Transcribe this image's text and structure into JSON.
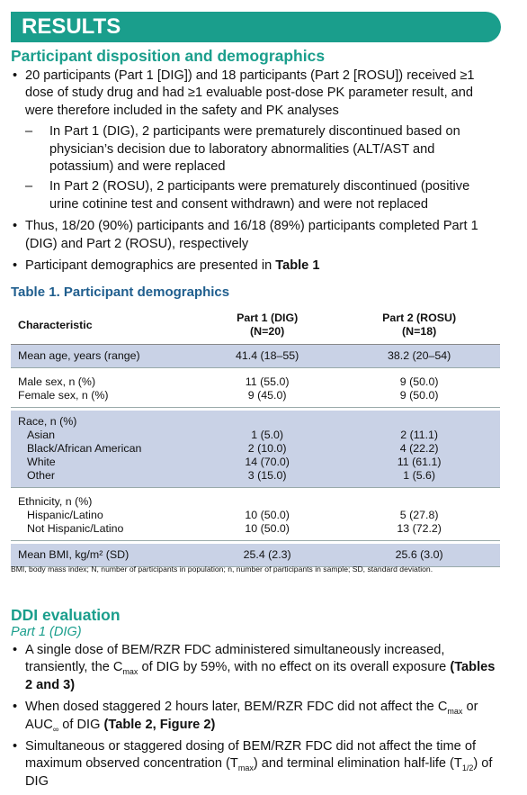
{
  "header": {
    "title": "RESULTS"
  },
  "section1": {
    "heading": "Participant disposition and demographics",
    "bullets": [
      {
        "text": "20 participants (Part 1 [DIG]) and 18 participants (Part 2 [ROSU]) received ≥1 dose of study drug and had ≥1 evaluable post-dose PK parameter result, and were therefore included in the safety and PK analyses",
        "subbullets": [
          "In Part 1 (DIG), 2 participants were prematurely discontinued based on physician’s decision due to laboratory abnormalities (ALT/AST and potassium) and were replaced",
          "In Part 2 (ROSU), 2 participants were prematurely discontinued (positive urine cotinine test and consent withdrawn) and were not replaced"
        ]
      },
      {
        "text": "Thus, 18/20 (90%) participants and 16/18 (89%) participants completed Part 1 (DIG) and Part 2 (ROSU), respectively"
      },
      {
        "parts": [
          "Participant demographics are presented in ",
          "Table 1"
        ]
      }
    ]
  },
  "table": {
    "title": "Table 1. Participant demographics",
    "columns": [
      {
        "name": "Characteristic"
      },
      {
        "name": "Part 1 (DIG)",
        "n": "(N=20)"
      },
      {
        "name": "Part 2 (ROSU)",
        "n": "(N=18)"
      }
    ],
    "groups": [
      {
        "rows": [
          {
            "label": "Mean age, years (range)",
            "values": [
              "41.4 (18–55)",
              "38.2 (20–54)"
            ]
          }
        ]
      },
      {
        "rows": [
          {
            "label": "Male sex, n (%)",
            "values": [
              "11 (55.0)",
              "9 (50.0)"
            ]
          },
          {
            "label": "Female sex, n (%)",
            "values": [
              "9 (45.0)",
              "9 (50.0)"
            ]
          }
        ]
      },
      {
        "heading": "Race, n (%)",
        "rows": [
          {
            "label": "Asian",
            "values": [
              "1 (5.0)",
              "2 (11.1)"
            ]
          },
          {
            "label": "Black/African American",
            "values": [
              "2 (10.0)",
              "4 (22.2)"
            ]
          },
          {
            "label": "White",
            "values": [
              "14 (70.0)",
              "11 (61.1)"
            ]
          },
          {
            "label": "Other",
            "values": [
              "3 (15.0)",
              "1 (5.6)"
            ]
          }
        ]
      },
      {
        "heading": "Ethnicity, n (%)",
        "rows": [
          {
            "label": "Hispanic/Latino",
            "values": [
              "10 (50.0)",
              "5 (27.8)"
            ]
          },
          {
            "label": "Not Hispanic/Latino",
            "values": [
              "10 (50.0)",
              "13 (72.2)"
            ]
          }
        ]
      },
      {
        "rows": [
          {
            "label": "Mean BMI, kg/m² (SD)",
            "values": [
              "25.4 (2.3)",
              "25.6 (3.0)"
            ]
          }
        ]
      }
    ],
    "footnote": "BMI, body mass index; N, number of participants in population; n, number of participants in sample; SD, standard deviation."
  },
  "section2": {
    "heading": "DDI evaluation",
    "subheading": "Part 1 (DIG)",
    "bullets": [
      {
        "parts": [
          "A single dose of BEM/RZR FDC administered simultaneously increased, transiently, the C",
          "max",
          " of DIG by 59%, with no effect on its overall exposure ",
          "(Tables 2 and 3)"
        ]
      },
      {
        "parts": [
          "When dosed staggered 2 hours later, BEM/RZR FDC did not affect the C",
          "max",
          " or AUC",
          "∞",
          " of DIG ",
          "(Table 2, Figure 2)"
        ]
      },
      {
        "parts": [
          "Simultaneous or staggered dosing of BEM/RZR FDC did not affect the time of maximum observed concentration (T",
          "max",
          ") and terminal elimination half-life (T",
          "1/2",
          ") of DIG"
        ]
      }
    ]
  }
}
